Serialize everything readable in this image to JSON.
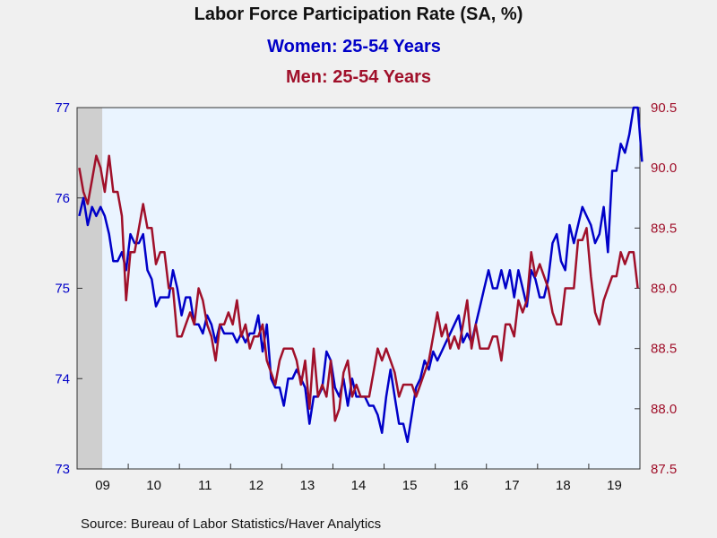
{
  "chart_data": {
    "type": "line",
    "title": "Labor Force Participation Rate (SA, %)",
    "series": [
      {
        "name": "Women: 25-54 Years",
        "axis": "left",
        "color": "#0000c8",
        "values": [
          75.8,
          76.0,
          75.7,
          75.9,
          75.8,
          75.9,
          75.8,
          75.6,
          75.3,
          75.3,
          75.4,
          75.2,
          75.6,
          75.5,
          75.5,
          75.6,
          75.2,
          75.1,
          74.8,
          74.9,
          74.9,
          74.9,
          75.2,
          75.0,
          74.7,
          74.9,
          74.9,
          74.6,
          74.6,
          74.5,
          74.7,
          74.6,
          74.4,
          74.6,
          74.5,
          74.5,
          74.5,
          74.4,
          74.5,
          74.4,
          74.5,
          74.5,
          74.7,
          74.3,
          74.6,
          74.0,
          73.9,
          73.9,
          73.7,
          74.0,
          74.0,
          74.1,
          74.0,
          73.9,
          73.5,
          73.8,
          73.8,
          73.9,
          74.3,
          74.2,
          73.9,
          73.8,
          74.0,
          73.7,
          74.0,
          73.8,
          73.8,
          73.8,
          73.7,
          73.7,
          73.6,
          73.4,
          73.8,
          74.1,
          73.8,
          73.5,
          73.5,
          73.3,
          73.6,
          73.9,
          74.0,
          74.2,
          74.1,
          74.3,
          74.2,
          74.3,
          74.4,
          74.5,
          74.6,
          74.7,
          74.4,
          74.5,
          74.4,
          74.6,
          74.8,
          75.0,
          75.2,
          75.0,
          75.0,
          75.2,
          75.0,
          75.2,
          74.9,
          75.2,
          75.0,
          74.8,
          75.2,
          75.1,
          74.9,
          74.9,
          75.1,
          75.5,
          75.6,
          75.3,
          75.2,
          75.7,
          75.5,
          75.7,
          75.9,
          75.8,
          75.7,
          75.5,
          75.6,
          75.9,
          75.4,
          76.3,
          76.3,
          76.6,
          76.5,
          76.7,
          77.0,
          77.0,
          76.4
        ]
      },
      {
        "name": "Men: 25-54 Years",
        "axis": "right",
        "color": "#a0102a",
        "values": [
          90.0,
          89.8,
          89.7,
          89.9,
          90.1,
          90.0,
          89.8,
          90.1,
          89.8,
          89.8,
          89.6,
          88.9,
          89.3,
          89.3,
          89.5,
          89.7,
          89.5,
          89.5,
          89.2,
          89.3,
          89.3,
          89.0,
          89.0,
          88.6,
          88.6,
          88.7,
          88.8,
          88.7,
          89.0,
          88.9,
          88.7,
          88.6,
          88.4,
          88.7,
          88.7,
          88.8,
          88.7,
          88.9,
          88.6,
          88.7,
          88.5,
          88.6,
          88.6,
          88.7,
          88.4,
          88.3,
          88.2,
          88.4,
          88.5,
          88.5,
          88.5,
          88.4,
          88.2,
          88.4,
          88.0,
          88.5,
          88.1,
          88.2,
          88.1,
          88.4,
          87.9,
          88.0,
          88.3,
          88.4,
          88.1,
          88.2,
          88.1,
          88.1,
          88.1,
          88.3,
          88.5,
          88.4,
          88.5,
          88.4,
          88.3,
          88.1,
          88.2,
          88.2,
          88.2,
          88.1,
          88.2,
          88.3,
          88.4,
          88.6,
          88.8,
          88.6,
          88.7,
          88.5,
          88.6,
          88.5,
          88.7,
          88.9,
          88.5,
          88.7,
          88.5,
          88.5,
          88.5,
          88.6,
          88.6,
          88.4,
          88.7,
          88.7,
          88.6,
          88.9,
          88.8,
          88.9,
          89.3,
          89.1,
          89.2,
          89.1,
          89.0,
          88.8,
          88.7,
          88.7,
          89.0,
          89.0,
          89.0,
          89.4,
          89.4,
          89.5,
          89.1,
          88.8,
          88.7,
          88.9,
          89.0,
          89.1,
          89.1,
          89.3,
          89.2,
          89.3,
          89.3,
          89.0
        ]
      }
    ],
    "x_start": "2009-01",
    "frequency": "monthly",
    "x_tick_labels": [
      "09",
      "10",
      "11",
      "12",
      "13",
      "14",
      "15",
      "16",
      "17",
      "18",
      "19"
    ],
    "y_left": {
      "ticks": [
        "73",
        "74",
        "75",
        "76",
        "77"
      ],
      "ylim": [
        73,
        77
      ]
    },
    "y_right": {
      "ticks": [
        "87.5",
        "88.0",
        "88.5",
        "89.0",
        "89.5",
        "90.0",
        "90.5"
      ],
      "ylim": [
        87.5,
        90.5
      ]
    },
    "recession_shading": {
      "from": "2009-01",
      "to": "2009-06"
    },
    "source": "Source:  Bureau of Labor Statistics/Haver Analytics"
  }
}
